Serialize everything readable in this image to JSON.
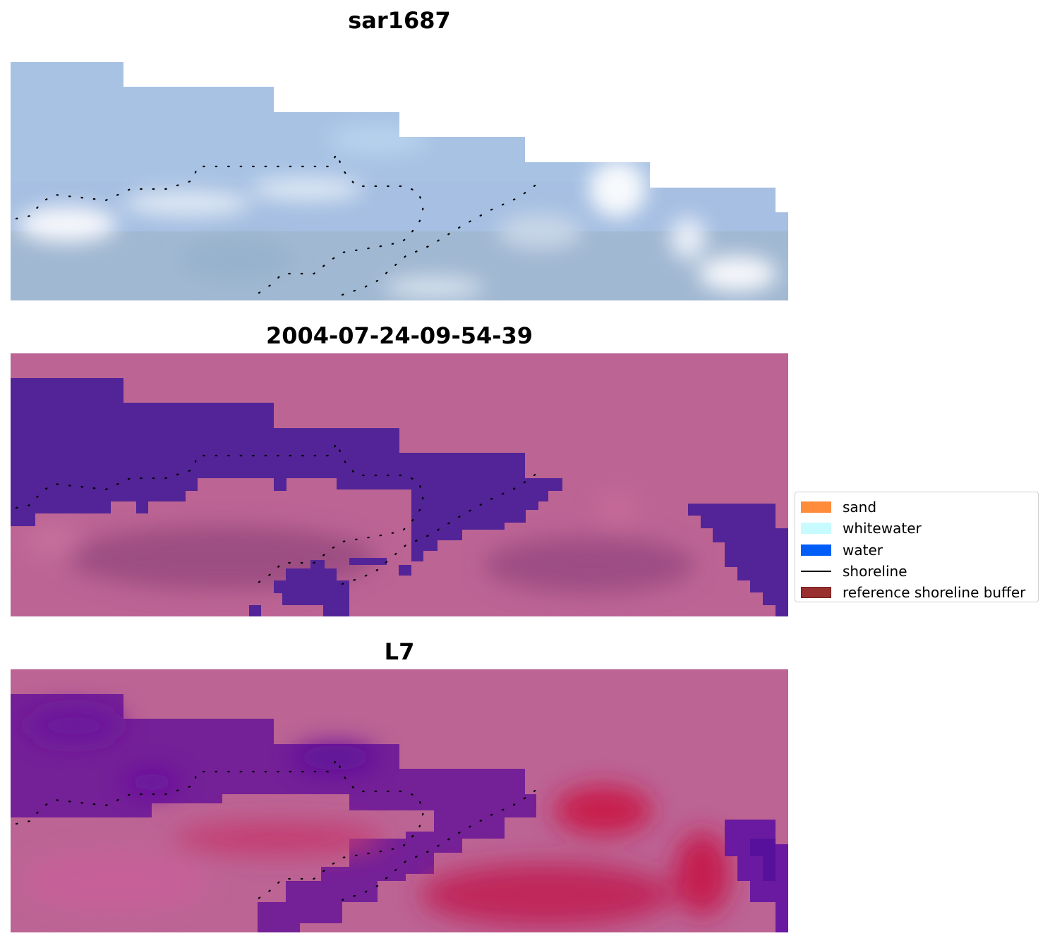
{
  "figure": {
    "titles": [
      "sar1687",
      "2004-07-24-09-54-39",
      "L7"
    ]
  },
  "legend": {
    "items": [
      {
        "label": "sand",
        "kind": "patch",
        "color": "#ff8c3b"
      },
      {
        "label": "whitewater",
        "kind": "patch",
        "color": "#c8fbff"
      },
      {
        "label": "water",
        "kind": "patch",
        "color": "#005df7"
      },
      {
        "label": "shoreline",
        "kind": "line",
        "color": "#000000"
      },
      {
        "label": "reference shoreline buffer",
        "kind": "patch",
        "color": "#992f2f"
      }
    ]
  },
  "colors": {
    "land_pink": "#bc6494",
    "water_purple": "#522497",
    "sky_blue": "#a9c2e3",
    "whitewater_white": "#f3f6fb",
    "sand_red": "#c8204e"
  }
}
